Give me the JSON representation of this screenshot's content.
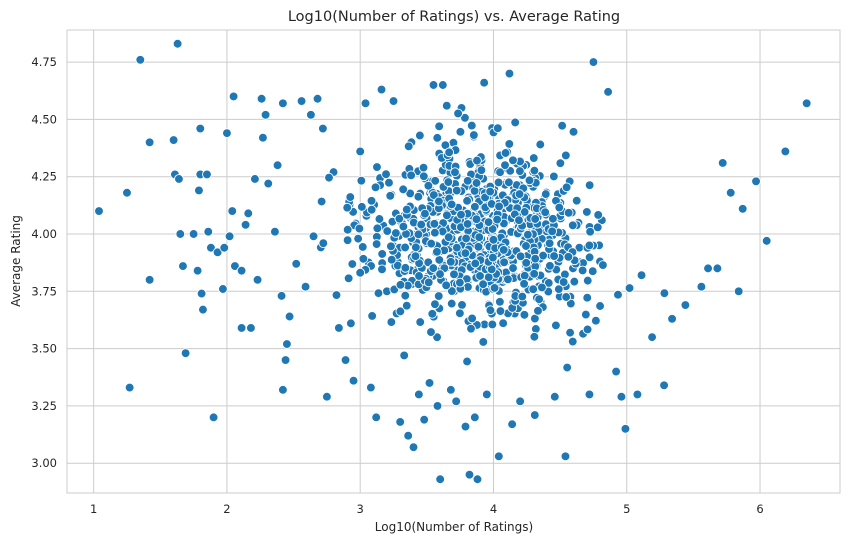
{
  "chart_data": {
    "type": "scatter",
    "title": "Log10(Number of Ratings) vs. Average Rating",
    "xlabel": "Log10(Number of Ratings)",
    "ylabel": "Average Rating",
    "xlim": [
      0.8,
      6.6
    ],
    "ylim": [
      2.87,
      4.89
    ],
    "xticks": [
      1,
      2,
      3,
      4,
      5,
      6
    ],
    "xtick_labels": [
      "1",
      "2",
      "3",
      "4",
      "5",
      "6"
    ],
    "yticks": [
      3.0,
      3.25,
      3.5,
      3.75,
      4.0,
      4.25,
      4.5,
      4.75
    ],
    "ytick_labels": [
      "3.00",
      "3.25",
      "3.50",
      "3.75",
      "4.00",
      "4.25",
      "4.50",
      "4.75"
    ],
    "grid": true,
    "legend": "none",
    "marker_color": "#1f77b4",
    "note": "Dense cloud of ~1000 points centred near x=3.9, y=4.0; listed points are the clearly visible/outlying ones",
    "points": [
      {
        "x": 1.04,
        "y": 4.1
      },
      {
        "x": 1.25,
        "y": 4.18
      },
      {
        "x": 1.27,
        "y": 3.33
      },
      {
        "x": 1.35,
        "y": 4.76
      },
      {
        "x": 1.42,
        "y": 3.8
      },
      {
        "x": 1.42,
        "y": 4.4
      },
      {
        "x": 1.6,
        "y": 4.41
      },
      {
        "x": 1.61,
        "y": 4.26
      },
      {
        "x": 1.63,
        "y": 4.83
      },
      {
        "x": 1.64,
        "y": 4.24
      },
      {
        "x": 1.65,
        "y": 4.0
      },
      {
        "x": 1.67,
        "y": 3.86
      },
      {
        "x": 1.69,
        "y": 3.48
      },
      {
        "x": 1.75,
        "y": 4.0
      },
      {
        "x": 1.78,
        "y": 3.84
      },
      {
        "x": 1.79,
        "y": 4.19
      },
      {
        "x": 1.8,
        "y": 4.46
      },
      {
        "x": 1.8,
        "y": 4.26
      },
      {
        "x": 1.81,
        "y": 3.74
      },
      {
        "x": 1.82,
        "y": 3.67
      },
      {
        "x": 1.85,
        "y": 4.26
      },
      {
        "x": 1.86,
        "y": 4.01
      },
      {
        "x": 1.88,
        "y": 3.94
      },
      {
        "x": 1.9,
        "y": 3.2
      },
      {
        "x": 1.93,
        "y": 3.92
      },
      {
        "x": 1.97,
        "y": 3.76
      },
      {
        "x": 1.98,
        "y": 3.94
      },
      {
        "x": 2.0,
        "y": 4.44
      },
      {
        "x": 2.02,
        "y": 3.99
      },
      {
        "x": 2.04,
        "y": 4.1
      },
      {
        "x": 2.05,
        "y": 4.6
      },
      {
        "x": 2.06,
        "y": 3.86
      },
      {
        "x": 2.11,
        "y": 3.84
      },
      {
        "x": 2.11,
        "y": 3.59
      },
      {
        "x": 2.14,
        "y": 4.04
      },
      {
        "x": 2.16,
        "y": 4.09
      },
      {
        "x": 2.18,
        "y": 3.59
      },
      {
        "x": 2.21,
        "y": 4.24
      },
      {
        "x": 2.23,
        "y": 3.8
      },
      {
        "x": 2.26,
        "y": 4.59
      },
      {
        "x": 2.27,
        "y": 4.42
      },
      {
        "x": 2.29,
        "y": 4.52
      },
      {
        "x": 2.31,
        "y": 4.22
      },
      {
        "x": 2.36,
        "y": 4.01
      },
      {
        "x": 2.38,
        "y": 4.3
      },
      {
        "x": 2.41,
        "y": 3.73
      },
      {
        "x": 2.42,
        "y": 3.32
      },
      {
        "x": 2.42,
        "y": 4.57
      },
      {
        "x": 2.44,
        "y": 3.45
      },
      {
        "x": 2.45,
        "y": 3.52
      },
      {
        "x": 2.47,
        "y": 3.64
      },
      {
        "x": 2.52,
        "y": 3.87
      },
      {
        "x": 2.56,
        "y": 4.58
      },
      {
        "x": 2.59,
        "y": 3.77
      },
      {
        "x": 2.63,
        "y": 4.52
      },
      {
        "x": 2.65,
        "y": 3.99
      },
      {
        "x": 2.68,
        "y": 4.59
      },
      {
        "x": 2.72,
        "y": 4.46
      },
      {
        "x": 2.75,
        "y": 3.29
      },
      {
        "x": 2.8,
        "y": 4.27
      },
      {
        "x": 2.84,
        "y": 3.59
      },
      {
        "x": 2.89,
        "y": 3.45
      },
      {
        "x": 2.93,
        "y": 3.61
      },
      {
        "x": 2.95,
        "y": 3.36
      },
      {
        "x": 3.0,
        "y": 4.36
      },
      {
        "x": 3.04,
        "y": 4.57
      },
      {
        "x": 3.08,
        "y": 3.33
      },
      {
        "x": 3.12,
        "y": 3.2
      },
      {
        "x": 3.16,
        "y": 4.63
      },
      {
        "x": 3.2,
        "y": 3.75
      },
      {
        "x": 3.25,
        "y": 4.58
      },
      {
        "x": 3.3,
        "y": 3.18
      },
      {
        "x": 3.33,
        "y": 3.47
      },
      {
        "x": 3.36,
        "y": 3.12
      },
      {
        "x": 3.4,
        "y": 3.07
      },
      {
        "x": 3.44,
        "y": 3.3
      },
      {
        "x": 3.48,
        "y": 3.19
      },
      {
        "x": 3.52,
        "y": 3.35
      },
      {
        "x": 3.55,
        "y": 4.65
      },
      {
        "x": 3.58,
        "y": 3.25
      },
      {
        "x": 3.6,
        "y": 2.93
      },
      {
        "x": 3.62,
        "y": 4.65
      },
      {
        "x": 3.68,
        "y": 3.32
      },
      {
        "x": 3.72,
        "y": 3.27
      },
      {
        "x": 3.76,
        "y": 4.55
      },
      {
        "x": 3.79,
        "y": 3.16
      },
      {
        "x": 3.82,
        "y": 2.95
      },
      {
        "x": 3.86,
        "y": 3.2
      },
      {
        "x": 3.88,
        "y": 2.93
      },
      {
        "x": 3.93,
        "y": 4.66
      },
      {
        "x": 3.95,
        "y": 3.3
      },
      {
        "x": 4.04,
        "y": 3.03
      },
      {
        "x": 4.12,
        "y": 4.7
      },
      {
        "x": 4.14,
        "y": 3.17
      },
      {
        "x": 4.2,
        "y": 3.27
      },
      {
        "x": 4.31,
        "y": 3.21
      },
      {
        "x": 4.46,
        "y": 3.29
      },
      {
        "x": 4.54,
        "y": 3.03
      },
      {
        "x": 4.72,
        "y": 3.3
      },
      {
        "x": 4.75,
        "y": 4.75
      },
      {
        "x": 4.86,
        "y": 4.62
      },
      {
        "x": 4.92,
        "y": 3.4
      },
      {
        "x": 4.96,
        "y": 3.29
      },
      {
        "x": 4.99,
        "y": 3.15
      },
      {
        "x": 5.08,
        "y": 3.3
      },
      {
        "x": 5.19,
        "y": 3.55
      },
      {
        "x": 5.28,
        "y": 3.34
      },
      {
        "x": 5.34,
        "y": 3.63
      },
      {
        "x": 5.44,
        "y": 3.69
      },
      {
        "x": 5.56,
        "y": 3.77
      },
      {
        "x": 5.61,
        "y": 3.85
      },
      {
        "x": 5.68,
        "y": 3.85
      },
      {
        "x": 5.72,
        "y": 4.31
      },
      {
        "x": 5.78,
        "y": 4.18
      },
      {
        "x": 5.84,
        "y": 3.75
      },
      {
        "x": 5.87,
        "y": 4.11
      },
      {
        "x": 5.97,
        "y": 4.23
      },
      {
        "x": 6.05,
        "y": 3.97
      },
      {
        "x": 6.19,
        "y": 4.36
      },
      {
        "x": 6.35,
        "y": 4.57
      }
    ]
  }
}
